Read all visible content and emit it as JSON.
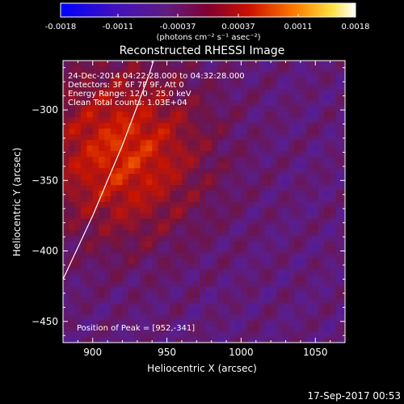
{
  "colorbar": {
    "ticks": [
      "-0.0018",
      "-0.0011",
      "-0.00037",
      "0.00037",
      "0.0011",
      "0.0018"
    ],
    "units": "(photons cm⁻² s⁻¹ asec⁻²)",
    "range": [
      -0.0018,
      0.0018
    ]
  },
  "annotations": {
    "time": "24-Dec-2014 04:22:28.000 to 04:32:28.000",
    "detectors": "Detectors: 3F 6F 7F 9F, Att 0",
    "energy": "Energy Range: 12.0 - 25.0 keV",
    "clean": "Clean    Total counts: 1.03E+04",
    "peak": "Position of Peak = [952,-341]"
  },
  "footer": {
    "timestamp": "17-Sep-2017 00:53"
  },
  "chart_data": {
    "type": "heatmap",
    "title": "Reconstructed RHESSI Image",
    "xlabel": "Heliocentric X (arcsec)",
    "ylabel": "Heliocentric Y (arcsec)",
    "xlim": [
      880,
      1070
    ],
    "ylim": [
      -465,
      -265
    ],
    "xticks": [
      900,
      950,
      1000,
      1050
    ],
    "xtick_labels": [
      "900",
      "950",
      "1000",
      "1050"
    ],
    "yticks": [
      -300,
      -350,
      -400,
      -450
    ],
    "ytick_labels": [
      "−300",
      "−350",
      "−400",
      "−450"
    ],
    "peak": [
      952,
      -341
    ],
    "sources": [
      {
        "x": 949,
        "y": -342,
        "peak_value": 0.0018
      },
      {
        "x": 968,
        "y": -355,
        "peak_value": 0.0016
      },
      {
        "x": 932,
        "y": -317,
        "peak_value": 0.0015
      }
    ],
    "limb_curve": [
      [
        880,
        -420
      ],
      [
        900,
        -375
      ],
      [
        920,
        -325
      ],
      [
        938,
        -275
      ],
      [
        941,
        -265
      ]
    ],
    "colormap": "blue-purple-red-yellow-white",
    "colorbar_range": [
      -0.0018,
      0.0018
    ]
  },
  "colors": {
    "background": "#000000",
    "foreground": "#ffffff"
  }
}
